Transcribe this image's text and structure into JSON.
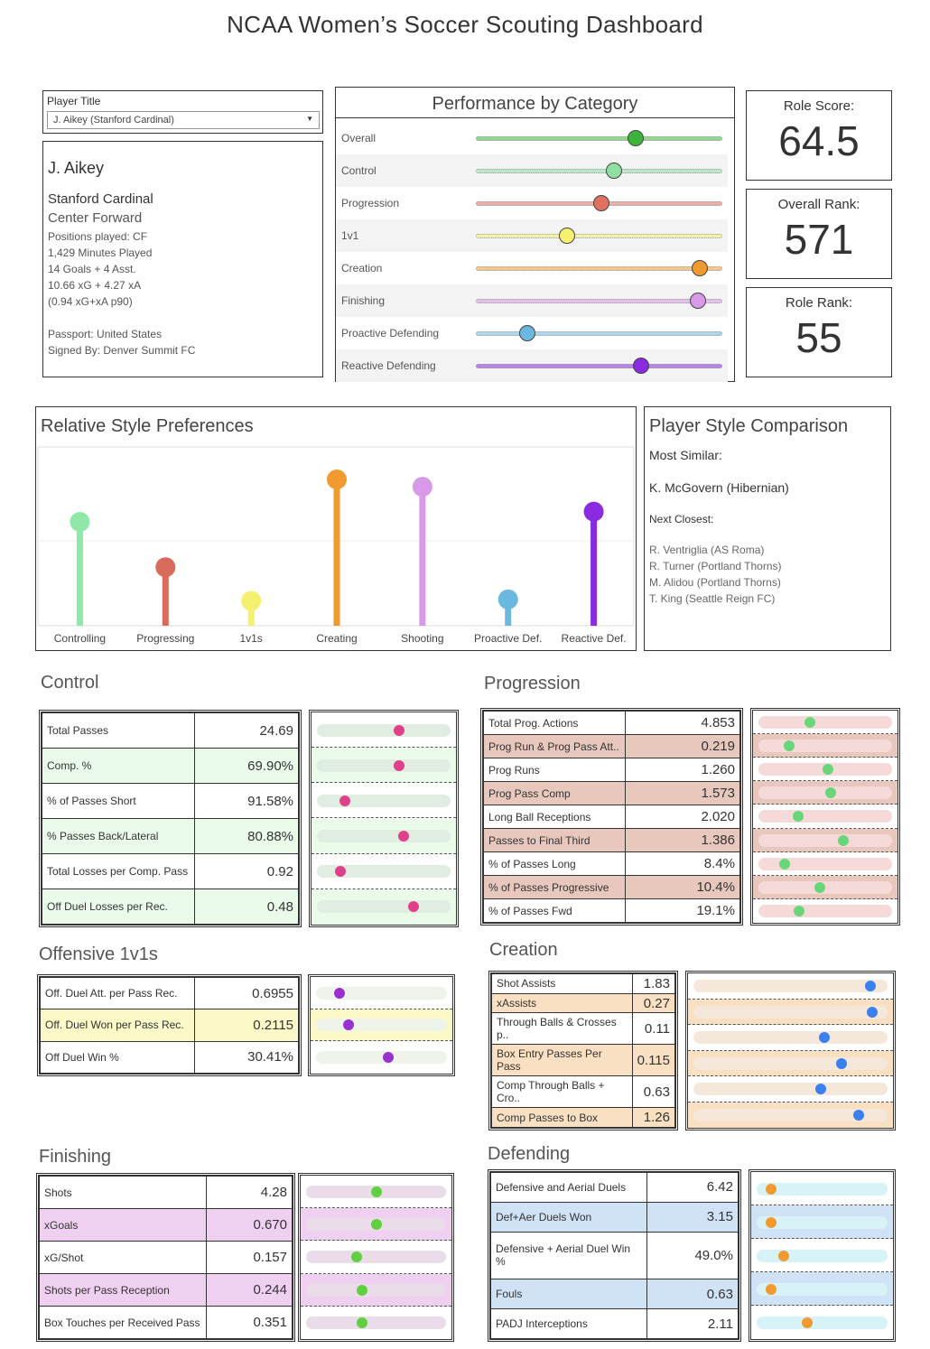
{
  "dashboard": {
    "title": "NCAA Women’s Soccer Scouting Dashboard"
  },
  "player": {
    "selector_label": "Player Title",
    "selected": "J. Aikey (Stanford Cardinal)",
    "name": "J. Aikey",
    "team": "Stanford Cardinal",
    "role": "Center Forward",
    "positions": "Positions played: CF",
    "minutes": "1,429 Minutes Played",
    "goals_assists": "14 Goals + 4 Asst.",
    "xg_xa": "10.66 xG + 4.27 xA",
    "xgxa_p90": "(0.94 xG+xA p90)",
    "passport": "Passport: United States",
    "signed": "Signed By: Denver Summit FC"
  },
  "scores": {
    "role_score_label": "Role Score:",
    "role_score": "64.5",
    "overall_rank_label": "Overall Rank:",
    "overall_rank": "571",
    "role_rank_label": "Role Rank:",
    "role_rank": "55"
  },
  "performance": {
    "title": "Performance by Category",
    "categories": [
      {
        "label": "Overall",
        "value": 0.65,
        "color": "#3db33a"
      },
      {
        "label": "Control",
        "value": 0.56,
        "color": "#8fe0a0"
      },
      {
        "label": "Progression",
        "value": 0.51,
        "color": "#e07060"
      },
      {
        "label": "1v1",
        "value": 0.37,
        "color": "#f5f070"
      },
      {
        "label": "Creation",
        "value": 0.91,
        "color": "#f09a30"
      },
      {
        "label": "Finishing",
        "value": 0.9,
        "color": "#d89ae8"
      },
      {
        "label": "Proactive Defending",
        "value": 0.21,
        "color": "#6ab8e0"
      },
      {
        "label": "Reactive Defending",
        "value": 0.67,
        "color": "#8a2be2"
      }
    ]
  },
  "style": {
    "title": "Relative Style Preferences",
    "chart_data": {
      "type": "bar",
      "title": "Relative Style Preferences",
      "categories": [
        "Controlling",
        "Progressing",
        "1v1s",
        "Creating",
        "Shooting",
        "Proactive Def.",
        "Reactive Def."
      ],
      "values": [
        0.71,
        0.4,
        0.17,
        1.0,
        0.95,
        0.18,
        0.78
      ],
      "colors": [
        "#8fe8a8",
        "#d96b5c",
        "#f5f070",
        "#f09a30",
        "#d89ae8",
        "#6ab8e0",
        "#8a2be2"
      ]
    }
  },
  "comparison": {
    "title": "Player Style Comparison",
    "most_similar_label": "Most Similar:",
    "most_similar": "K. McGovern (Hibernian)",
    "next_label": "Next Closest:",
    "next": [
      "R. Ventriglia (AS Roma)",
      "R. Turner (Portland Thorns)",
      "M. Alidou (Portland Thorns)",
      "T. King (Seattle Reign FC)"
    ]
  },
  "control": {
    "title": "Control",
    "dot_color": "#e0408a",
    "rows": [
      {
        "label": "Total Passes",
        "value": "24.69",
        "pct": 0.62,
        "hl": false
      },
      {
        "label": "Comp. %",
        "value": "69.90%",
        "pct": 0.62,
        "hl": true
      },
      {
        "label": "% of Passes Short",
        "value": "91.58%",
        "pct": 0.2,
        "hl": false
      },
      {
        "label": "% Passes Back/Lateral",
        "value": "80.88%",
        "pct": 0.65,
        "hl": true
      },
      {
        "label": "Total Losses per Comp. Pass",
        "value": "0.92",
        "pct": 0.17,
        "hl": false
      },
      {
        "label": "Off Duel Losses per Rec.",
        "value": "0.48",
        "pct": 0.73,
        "hl": true
      }
    ]
  },
  "progression": {
    "title": "Progression",
    "dot_color": "#6ad67a",
    "rows": [
      {
        "label": "Total Prog. Actions",
        "value": "4.853",
        "pct": 0.38,
        "hl": false
      },
      {
        "label": "Prog Run & Prog Pass Att..",
        "value": "0.219",
        "pct": 0.22,
        "hl": true
      },
      {
        "label": "Prog Runs",
        "value": "1.260",
        "pct": 0.52,
        "hl": false
      },
      {
        "label": "Prog Pass Comp",
        "value": "1.573",
        "pct": 0.54,
        "hl": true
      },
      {
        "label": "Long Ball Receptions",
        "value": "2.020",
        "pct": 0.29,
        "hl": false
      },
      {
        "label": "Passes to Final Third",
        "value": "1.386",
        "pct": 0.64,
        "hl": true
      },
      {
        "label": "% of Passes Long",
        "value": "8.4%",
        "pct": 0.19,
        "hl": false
      },
      {
        "label": "% of Passes Progressive",
        "value": "10.4%",
        "pct": 0.46,
        "hl": true
      },
      {
        "label": "% of Passes Fwd",
        "value": "19.1%",
        "pct": 0.3,
        "hl": false
      }
    ]
  },
  "offensive": {
    "title": "Offensive 1v1s",
    "dot_color": "#9b30d0",
    "rows": [
      {
        "label": "Off. Duel Att. per Pass Rec.",
        "value": "0.6955",
        "pct": 0.17,
        "hl": false
      },
      {
        "label": "Off. Duel Won per Pass Rec.",
        "value": "0.2115",
        "pct": 0.24,
        "hl": true
      },
      {
        "label": "Off Duel Win %",
        "value": "30.41%",
        "pct": 0.55,
        "hl": false
      }
    ]
  },
  "creation": {
    "title": "Creation",
    "dot_color": "#3a80f0",
    "rows": [
      {
        "label": "Shot Assists",
        "value": "1.83",
        "pct": 0.92,
        "hl": false
      },
      {
        "label": "xAssists",
        "value": "0.27",
        "pct": 0.93,
        "hl": true
      },
      {
        "label": "Through Balls & Crosses p..",
        "value": "0.11",
        "pct": 0.68,
        "hl": false
      },
      {
        "label": "Box Entry Passes Per Pass",
        "value": "0.115",
        "pct": 0.77,
        "hl": true
      },
      {
        "label": "Comp Through Balls + Cro..",
        "value": "0.63",
        "pct": 0.66,
        "hl": false
      },
      {
        "label": "Comp Passes to Box",
        "value": "1.26",
        "pct": 0.86,
        "hl": true
      }
    ]
  },
  "finishing": {
    "title": "Finishing",
    "dot_color": "#60d040",
    "rows": [
      {
        "label": "Shots",
        "value": "4.28",
        "pct": 0.5,
        "hl": false
      },
      {
        "label": "xGoals",
        "value": "0.670",
        "pct": 0.5,
        "hl": true
      },
      {
        "label": "xG/Shot",
        "value": "0.157",
        "pct": 0.36,
        "hl": false
      },
      {
        "label": "Shots per Pass Reception",
        "value": "0.244",
        "pct": 0.4,
        "hl": true
      },
      {
        "label": "Box Touches per Received Pass",
        "value": "0.351",
        "pct": 0.4,
        "hl": false
      }
    ]
  },
  "defending": {
    "title": "Defending",
    "dot_color": "#f09a30",
    "rows": [
      {
        "label": "Defensive and Aerial Duels",
        "value": "6.42",
        "pct": 0.1,
        "hl": false
      },
      {
        "label": "Def+Aer Duels Won",
        "value": "3.15",
        "pct": 0.1,
        "hl": true
      },
      {
        "label": "Defensive + Aerial Duel Win %",
        "value": "49.0%",
        "pct": 0.2,
        "hl": false
      },
      {
        "label": "Fouls",
        "value": "0.63",
        "pct": 0.1,
        "hl": true
      },
      {
        "label": "PADJ Interceptions",
        "value": "2.11",
        "pct": 0.38,
        "hl": false
      }
    ]
  }
}
